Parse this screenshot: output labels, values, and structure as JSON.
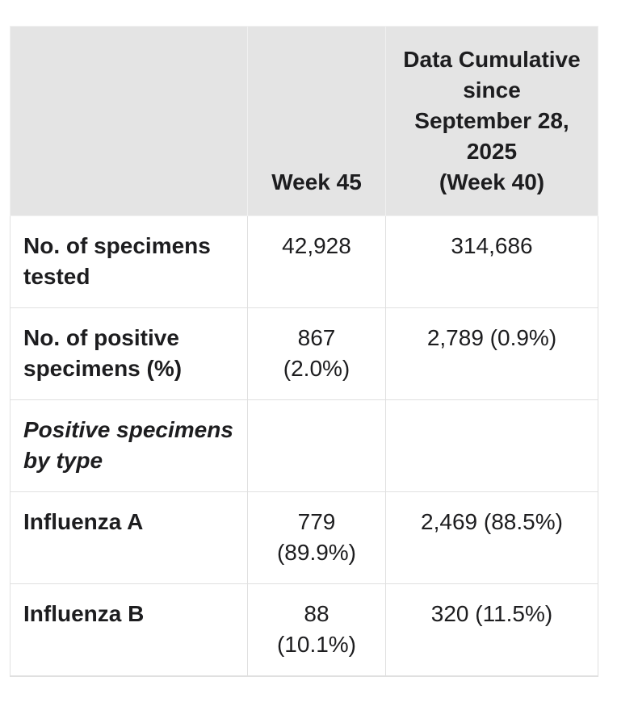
{
  "page": {
    "background_color": "#ffffff"
  },
  "table": {
    "colors": {
      "header_bg": "#e4e4e4",
      "body_border": "#e0e0e0",
      "header_border": "#f0f0f0",
      "text": "#1d1d1f"
    },
    "header": {
      "row_label_col": "",
      "week_col": "Week 45",
      "cumulative_col": "Data Cumulative\nsince\nSeptember 28,\n2025\n(Week 40)"
    },
    "rows": [
      {
        "label": "No. of specimens\ntested",
        "week": "42,928",
        "cumulative": "314,686"
      },
      {
        "label": "No. of positive\nspecimens (%)",
        "week": "867\n(2.0%)",
        "cumulative": "2,789 (0.9%)"
      },
      {
        "label": "Positive specimens\nby type",
        "week": "",
        "cumulative": ""
      },
      {
        "label": "Influenza A",
        "week": "779\n(89.9%)",
        "cumulative": "2,469 (88.5%)"
      },
      {
        "label": "Influenza B",
        "week": "88\n(10.1%)",
        "cumulative": "320 (11.5%)"
      }
    ]
  }
}
